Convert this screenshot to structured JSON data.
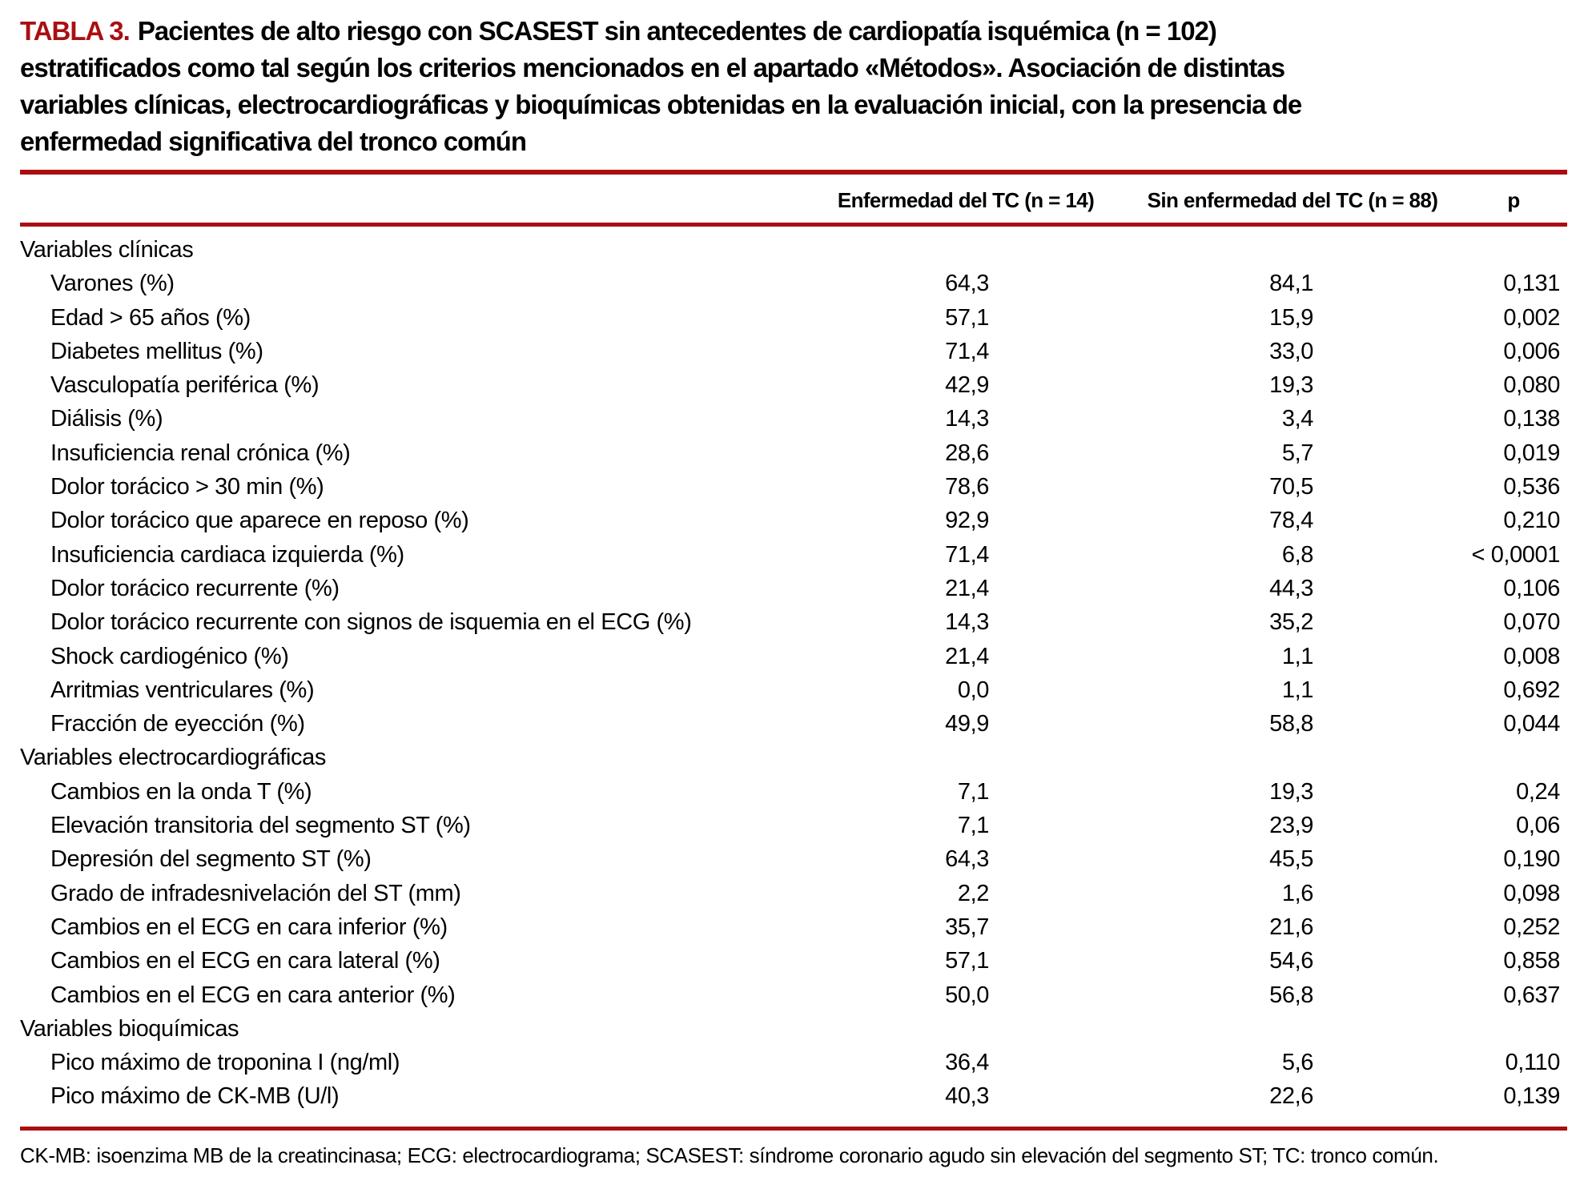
{
  "document": {
    "label": "TABLA 3.",
    "title_lines": [
      "Pacientes de alto riesgo con SCASEST sin antecedentes de cardiopatía isquémica (n = 102)",
      "estratificados como tal según los criterios mencionados en el apartado «Métodos». Asociación de distintas",
      "variables clínicas, electrocardiográficas y bioquímicas obtenidas en la evaluación inicial, con la presencia de",
      "enfermedad significativa del tronco común"
    ]
  },
  "table": {
    "columns": [
      "Enfermedad del TC (n = 14)",
      "Sin enfermedad del TC (n = 88)",
      "p"
    ],
    "sections": [
      {
        "name": "Variables clínicas",
        "rows": [
          {
            "label": "Varones (%)",
            "v1": "64,3",
            "v2": "84,1",
            "p": "0,131"
          },
          {
            "label": "Edad > 65 años (%)",
            "v1": "57,1",
            "v2": "15,9",
            "p": "0,002"
          },
          {
            "label": "Diabetes mellitus (%)",
            "v1": "71,4",
            "v2": "33,0",
            "p": "0,006"
          },
          {
            "label": "Vasculopatía periférica (%)",
            "v1": "42,9",
            "v2": "19,3",
            "p": "0,080"
          },
          {
            "label": "Diálisis (%)",
            "v1": "14,3",
            "v2": "3,4",
            "p": "0,138"
          },
          {
            "label": "Insuficiencia renal crónica (%)",
            "v1": "28,6",
            "v2": "5,7",
            "p": "0,019"
          },
          {
            "label": "Dolor torácico > 30 min (%)",
            "v1": "78,6",
            "v2": "70,5",
            "p": "0,536"
          },
          {
            "label": "Dolor torácico que aparece en reposo (%)",
            "v1": "92,9",
            "v2": "78,4",
            "p": "0,210"
          },
          {
            "label": "Insuficiencia cardiaca izquierda (%)",
            "v1": "71,4",
            "v2": "6,8",
            "p": "< 0,0001"
          },
          {
            "label": "Dolor torácico recurrente (%)",
            "v1": "21,4",
            "v2": "44,3",
            "p": "0,106"
          },
          {
            "label": "Dolor torácico recurrente con signos de isquemia en el ECG (%)",
            "v1": "14,3",
            "v2": "35,2",
            "p": "0,070"
          },
          {
            "label": "Shock cardiogénico (%)",
            "v1": "21,4",
            "v2": "1,1",
            "p": "0,008"
          },
          {
            "label": "Arritmias ventriculares (%)",
            "v1": "0,0",
            "v2": "1,1",
            "p": "0,692"
          },
          {
            "label": "Fracción de eyección (%)",
            "v1": "49,9",
            "v2": "58,8",
            "p": "0,044"
          }
        ]
      },
      {
        "name": "Variables electrocardiográficas",
        "rows": [
          {
            "label": "Cambios en la onda T (%)",
            "v1": "7,1",
            "v2": "19,3",
            "p": "0,24"
          },
          {
            "label": "Elevación transitoria del segmento ST (%)",
            "v1": "7,1",
            "v2": "23,9",
            "p": "0,06"
          },
          {
            "label": "Depresión del segmento ST (%)",
            "v1": "64,3",
            "v2": "45,5",
            "p": "0,190"
          },
          {
            "label": "Grado de infradesnivelación del ST (mm)",
            "v1": "2,2",
            "v2": "1,6",
            "p": "0,098"
          },
          {
            "label": "Cambios en el ECG en cara inferior (%)",
            "v1": "35,7",
            "v2": "21,6",
            "p": "0,252"
          },
          {
            "label": "Cambios en el ECG en cara lateral (%)",
            "v1": "57,1",
            "v2": "54,6",
            "p": "0,858"
          },
          {
            "label": "Cambios en el ECG en cara anterior (%)",
            "v1": "50,0",
            "v2": "56,8",
            "p": "0,637"
          }
        ]
      },
      {
        "name": "Variables bioquímicas",
        "rows": [
          {
            "label": "Pico máximo de troponina I (ng/ml)",
            "v1": "36,4",
            "v2": "5,6",
            "p": "0,110"
          },
          {
            "label": "Pico máximo de CK-MB (U/l)",
            "v1": "40,3",
            "v2": "22,6",
            "p": "0,139"
          }
        ]
      }
    ]
  },
  "footnote": "CK-MB: isoenzima MB de la creatincinasa; ECG: electrocardiograma; SCASEST: síndrome coronario agudo sin elevación del segmento ST; TC: tronco común.",
  "colors": {
    "accent_red": "#AA0E12"
  }
}
